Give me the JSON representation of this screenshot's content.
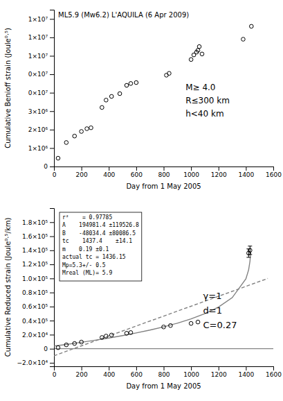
{
  "chart_data": [
    {
      "type": "scatter",
      "title": "ML5.9 (Mw6.2) L'AQUILA (6 Apr 2009)",
      "xlabel": "Day from 1 May 2005",
      "ylabel": "Cumulative Benioff strain (Joule⁰·⁵)",
      "annotations": [
        [
          "M≥ 4.0",
          "R≤300 km",
          "h<40 km"
        ]
      ],
      "xlim": [
        0,
        1600
      ],
      "ylim": [
        0,
        8500000
      ],
      "xticks": [
        0,
        200,
        400,
        600,
        800,
        1000,
        1200,
        1400,
        1600
      ],
      "yticks": [
        0,
        {
          "value": 1000000,
          "label": "1×10⁶"
        },
        {
          "value": 2000000,
          "label": "2×10⁶"
        },
        {
          "value": 3000000,
          "label": "3×10⁶"
        },
        {
          "value": 4000000,
          "label": "0×10⁷"
        },
        {
          "value": 5000000,
          "label": "0×10⁷"
        },
        {
          "value": 6000000,
          "label": "1×10⁷"
        },
        {
          "value": 7000000,
          "label": "1×10⁷"
        },
        {
          "value": 8000000,
          "label": "1×10⁷"
        }
      ],
      "series": [
        {
          "type": "scatter",
          "marker": "circle",
          "color": "black",
          "x": [
            30,
            90,
            150,
            200,
            240,
            270,
            350,
            380,
            420,
            480,
            530,
            560,
            600,
            820,
            840,
            1000,
            1020,
            1040,
            1050,
            1060,
            1080,
            1380,
            1440
          ],
          "values": [
            450000,
            1300000,
            1650000,
            1900000,
            2050000,
            2100000,
            3200000,
            3600000,
            3800000,
            3950000,
            4400000,
            4500000,
            4550000,
            4950000,
            5050000,
            5800000,
            6050000,
            6200000,
            6300000,
            6500000,
            6100000,
            6900000,
            7600000
          ]
        }
      ]
    },
    {
      "type": "scatter",
      "xlabel": "Day from 1 May 2005",
      "ylabel": "Cumulative Reduced strain (Joule⁰·⁵/km)",
      "info_box": [
        "r²    = 0.97785",
        "A    194981.4 ±119526.8",
        "B    -48034.4 ±80086.5",
        "tc    1437.4    ±14.1",
        "m    0.19 ±0.1",
        "actual tc = 1436.15",
        "Mp=5.3+/- 0.5",
        "Mreal (ML)= 5.9"
      ],
      "annotations": [
        [
          "γ=1",
          "d=1",
          "C=0.27"
        ]
      ],
      "hlines": [
        0
      ],
      "xlim": [
        0,
        1600
      ],
      "ylim": [
        -25000,
        200000
      ],
      "xticks": [
        0,
        200,
        400,
        600,
        800,
        1000,
        1200,
        1400,
        1600
      ],
      "yticks": [
        {
          "value": -20000,
          "label": "−2.0×10⁴"
        },
        0,
        {
          "value": 20000,
          "label": "2.0×10⁴"
        },
        {
          "value": 40000,
          "label": "0.4×10⁵"
        },
        {
          "value": 60000,
          "label": "0.6×10⁵"
        },
        {
          "value": 80000,
          "label": "0.8×10⁵"
        },
        {
          "value": 100000,
          "label": "1.0×10⁵"
        },
        {
          "value": 120000,
          "label": "1.2×10⁵"
        },
        {
          "value": 140000,
          "label": "1.4×10⁵"
        },
        {
          "value": 160000,
          "label": "1.6×10⁵"
        },
        {
          "value": 180000,
          "label": "1.8×10⁵"
        }
      ],
      "series": [
        {
          "type": "line",
          "color": "gray",
          "line_style": "solid",
          "x": [
            1,
            100,
            200,
            300,
            400,
            500,
            600,
            700,
            800,
            900,
            1000,
            1100,
            1200,
            1300,
            1400,
            1420,
            1430,
            1435
          ],
          "values": [
            3804,
            6381,
            9145,
            12097,
            15267,
            18695,
            22434,
            26552,
            31152,
            36380,
            42464,
            49802,
            59184,
            72585,
            99394,
            112329,
            124722,
            138254
          ]
        },
        {
          "type": "line",
          "color": "gray",
          "line_style": "dashed",
          "x": [
            0,
            1560
          ],
          "values": [
            -10000,
            100000
          ]
        },
        {
          "type": "scatter",
          "marker": "circle",
          "color": "black",
          "x": [
            30,
            90,
            150,
            200,
            350,
            380,
            420,
            530,
            560,
            800,
            850,
            1000,
            1050,
            1420,
            1430
          ],
          "values": [
            1500,
            5500,
            7500,
            9500,
            16000,
            18000,
            19500,
            22000,
            23000,
            31000,
            33000,
            36000,
            38000,
            136000,
            140000
          ],
          "y_errors": [
            null,
            null,
            null,
            null,
            null,
            null,
            null,
            null,
            null,
            null,
            null,
            null,
            null,
            6000,
            6000
          ]
        }
      ]
    }
  ]
}
